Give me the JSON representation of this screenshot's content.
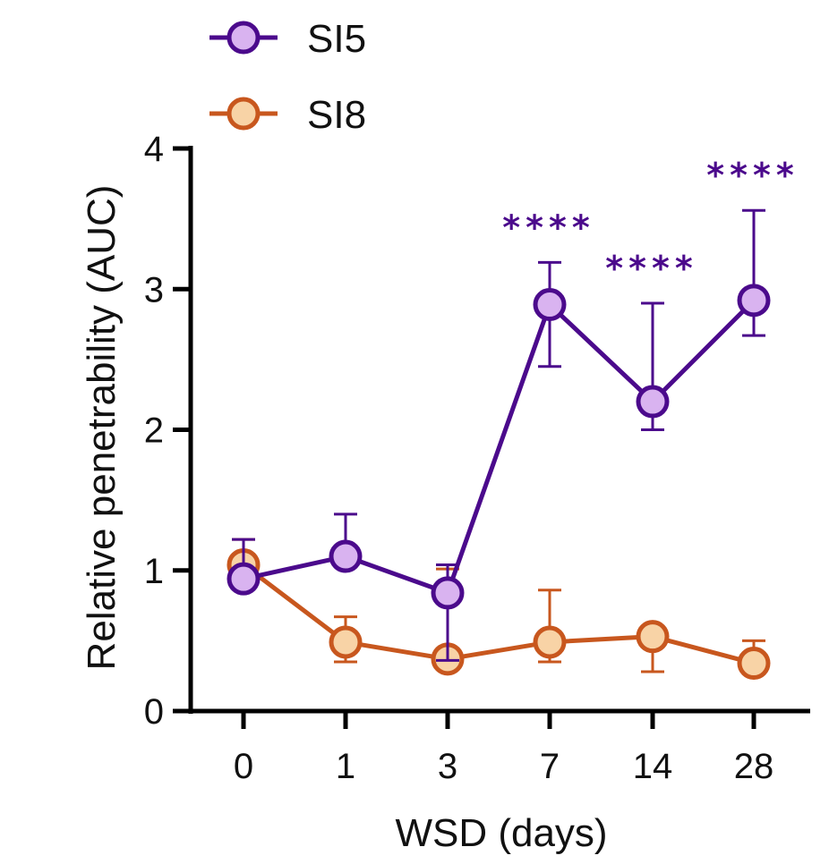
{
  "chart_data": {
    "type": "line",
    "title": "",
    "xlabel": "WSD (days)",
    "ylabel": "Relative penetrability (AUC)",
    "categories": [
      "0",
      "1",
      "3",
      "7",
      "14",
      "28"
    ],
    "ylim": [
      0,
      4
    ],
    "yticks": [
      "0",
      "1",
      "2",
      "3",
      "4"
    ],
    "grid": false,
    "legend_position": "top-left",
    "series": [
      {
        "name": "SI5",
        "color": "#4b0a8c",
        "fill": "#d9b3f0",
        "values": [
          0.94,
          1.1,
          0.84,
          2.89,
          2.2,
          2.92
        ],
        "error_upper": [
          1.22,
          1.4,
          1.04,
          3.19,
          2.9,
          3.56
        ],
        "error_lower": [
          null,
          null,
          0.36,
          2.45,
          2.0,
          2.67
        ],
        "significance": [
          "",
          "",
          "",
          "****",
          "****",
          "****"
        ]
      },
      {
        "name": "SI8",
        "color": "#c8571e",
        "fill": "#f8d3a6",
        "values": [
          1.04,
          0.49,
          0.37,
          0.49,
          0.53,
          0.34
        ],
        "error_upper": [
          1.22,
          0.67,
          1.01,
          0.86,
          null,
          0.5
        ],
        "error_lower": [
          null,
          0.35,
          null,
          0.35,
          0.28,
          null
        ],
        "significance": [
          "",
          "",
          "",
          "",
          "",
          ""
        ]
      }
    ]
  }
}
